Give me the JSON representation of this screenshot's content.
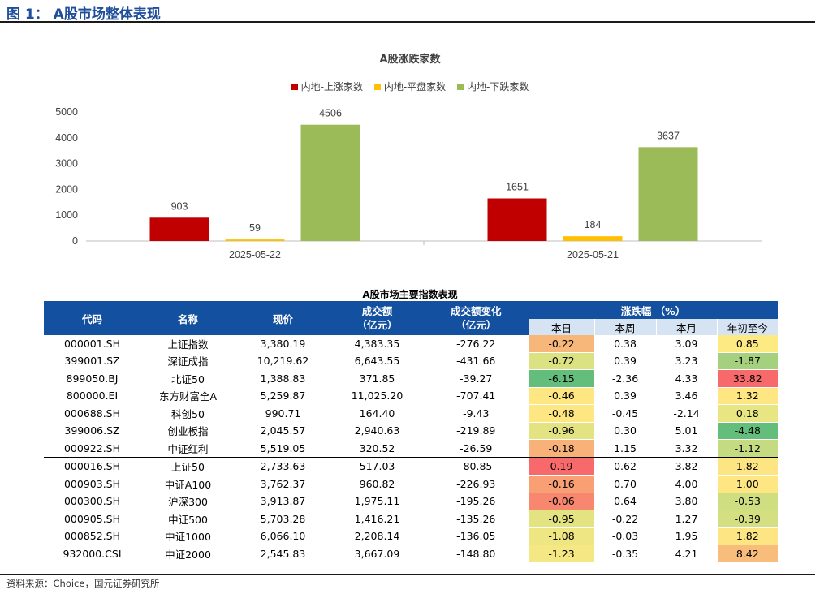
{
  "figure_title": "图 1： A股市场整体表现",
  "source": "资料来源：Choice，国元证券研究所",
  "colors": {
    "up": "#C00000",
    "flat": "#FFC000",
    "down": "#9BBB59",
    "header": "#1450A0",
    "subheader": "#D6E3F2"
  },
  "chart_data": {
    "type": "bar",
    "title": "A股涨跌家数",
    "categories": [
      "2025-05-22",
      "2025-05-21"
    ],
    "series": [
      {
        "name": "内地-上涨家数",
        "color": "#C00000",
        "values": [
          903,
          1651
        ]
      },
      {
        "name": "内地-平盘家数",
        "color": "#FFC000",
        "values": [
          59,
          184
        ]
      },
      {
        "name": "内地-下跌家数",
        "color": "#9BBB59",
        "values": [
          4506,
          3637
        ]
      }
    ],
    "ylim": [
      0,
      5000
    ],
    "yticks": [
      0,
      1000,
      2000,
      3000,
      4000,
      5000
    ],
    "xlabel": "",
    "ylabel": "",
    "legend_position": "top"
  },
  "table": {
    "title": "A股市场主要指数表现",
    "headers": {
      "code": "代码",
      "name": "名称",
      "price": "现价",
      "turnover": "成交额\n（亿元）",
      "turnover_change": "成交额变化\n（亿元）",
      "pct_group": "涨跌幅 （%）",
      "day": "本日",
      "week": "本周",
      "month": "本月",
      "ytd": "年初至今"
    },
    "rows": [
      {
        "code": "000001.SH",
        "name": "上证指数",
        "price": "3,380.19",
        "turnover": "4,383.35",
        "change": "-276.22",
        "day": "-0.22",
        "week": "0.38",
        "month": "3.09",
        "ytd": "0.85",
        "day_color": "#F8B77A",
        "ytd_color": "#FEEA83"
      },
      {
        "code": "399001.SZ",
        "name": "深证成指",
        "price": "10,219.62",
        "turnover": "6,643.55",
        "change": "-431.66",
        "day": "-0.72",
        "week": "0.39",
        "month": "3.23",
        "ytd": "-1.87",
        "day_color": "#DBE282",
        "ytd_color": "#A5D07E"
      },
      {
        "code": "899050.BJ",
        "name": "北证50",
        "price": "1,388.83",
        "turnover": "371.85",
        "change": "-39.27",
        "day": "-6.15",
        "week": "-2.36",
        "month": "4.33",
        "ytd": "33.82",
        "day_color": "#63BE7B",
        "ytd_color": "#F8696B"
      },
      {
        "code": "800000.EI",
        "name": "东方财富全A",
        "price": "5,259.87",
        "turnover": "11,025.20",
        "change": "-707.41",
        "day": "-0.46",
        "week": "0.39",
        "month": "3.46",
        "ytd": "1.32",
        "day_color": "#FEE783",
        "ytd_color": "#FEE683"
      },
      {
        "code": "000688.SH",
        "name": "科创50",
        "price": "990.71",
        "turnover": "164.40",
        "change": "-9.43",
        "day": "-0.48",
        "week": "-0.45",
        "month": "-2.14",
        "ytd": "0.18",
        "day_color": "#FEE783",
        "ytd_color": "#E8E583"
      },
      {
        "code": "399006.SZ",
        "name": "创业板指",
        "price": "2,045.57",
        "turnover": "2,940.63",
        "change": "-219.89",
        "day": "-0.96",
        "week": "0.30",
        "month": "5.01",
        "ytd": "-4.48",
        "day_color": "#E3E382",
        "ytd_color": "#63BE7B"
      },
      {
        "code": "000922.SH",
        "name": "中证红利",
        "price": "5,519.05",
        "turnover": "320.52",
        "change": "-26.59",
        "day": "-0.18",
        "week": "1.15",
        "month": "3.32",
        "ytd": "-1.12",
        "day_color": "#F8B178",
        "ytd_color": "#C5DB81"
      },
      {
        "code": "000016.SH",
        "name": "上证50",
        "price": "2,733.63",
        "turnover": "517.03",
        "change": "-80.85",
        "day": "0.19",
        "week": "0.62",
        "month": "3.82",
        "ytd": "1.82",
        "day_color": "#F8696B",
        "ytd_color": "#FEE583",
        "sep": true
      },
      {
        "code": "000903.SH",
        "name": "中证A100",
        "price": "3,762.37",
        "turnover": "960.82",
        "change": "-226.93",
        "day": "-0.16",
        "week": "0.70",
        "month": "4.00",
        "ytd": "1.00",
        "day_color": "#F8A074",
        "ytd_color": "#FEE783"
      },
      {
        "code": "000300.SH",
        "name": "沪深300",
        "price": "3,913.87",
        "turnover": "1,975.11",
        "change": "-195.26",
        "day": "-0.06",
        "week": "0.64",
        "month": "3.80",
        "ytd": "-0.53",
        "day_color": "#F8876F",
        "ytd_color": "#D0DE82"
      },
      {
        "code": "000905.SH",
        "name": "中证500",
        "price": "5,703.28",
        "turnover": "1,416.21",
        "change": "-135.26",
        "day": "-0.95",
        "week": "-0.22",
        "month": "1.27",
        "ytd": "-0.39",
        "day_color": "#E4E382",
        "ytd_color": "#D4DF82"
      },
      {
        "code": "000852.SH",
        "name": "中证1000",
        "price": "6,066.10",
        "turnover": "2,208.14",
        "change": "-136.05",
        "day": "-1.08",
        "week": "-0.03",
        "month": "1.95",
        "ytd": "1.82",
        "day_color": "#EEE683",
        "ytd_color": "#FEE583"
      },
      {
        "code": "932000.CSI",
        "name": "中证2000",
        "price": "2,545.83",
        "turnover": "3,667.09",
        "change": "-148.80",
        "day": "-1.23",
        "week": "-0.35",
        "month": "4.21",
        "ytd": "8.42",
        "day_color": "#F5E784",
        "ytd_color": "#F9BD7B"
      }
    ]
  }
}
